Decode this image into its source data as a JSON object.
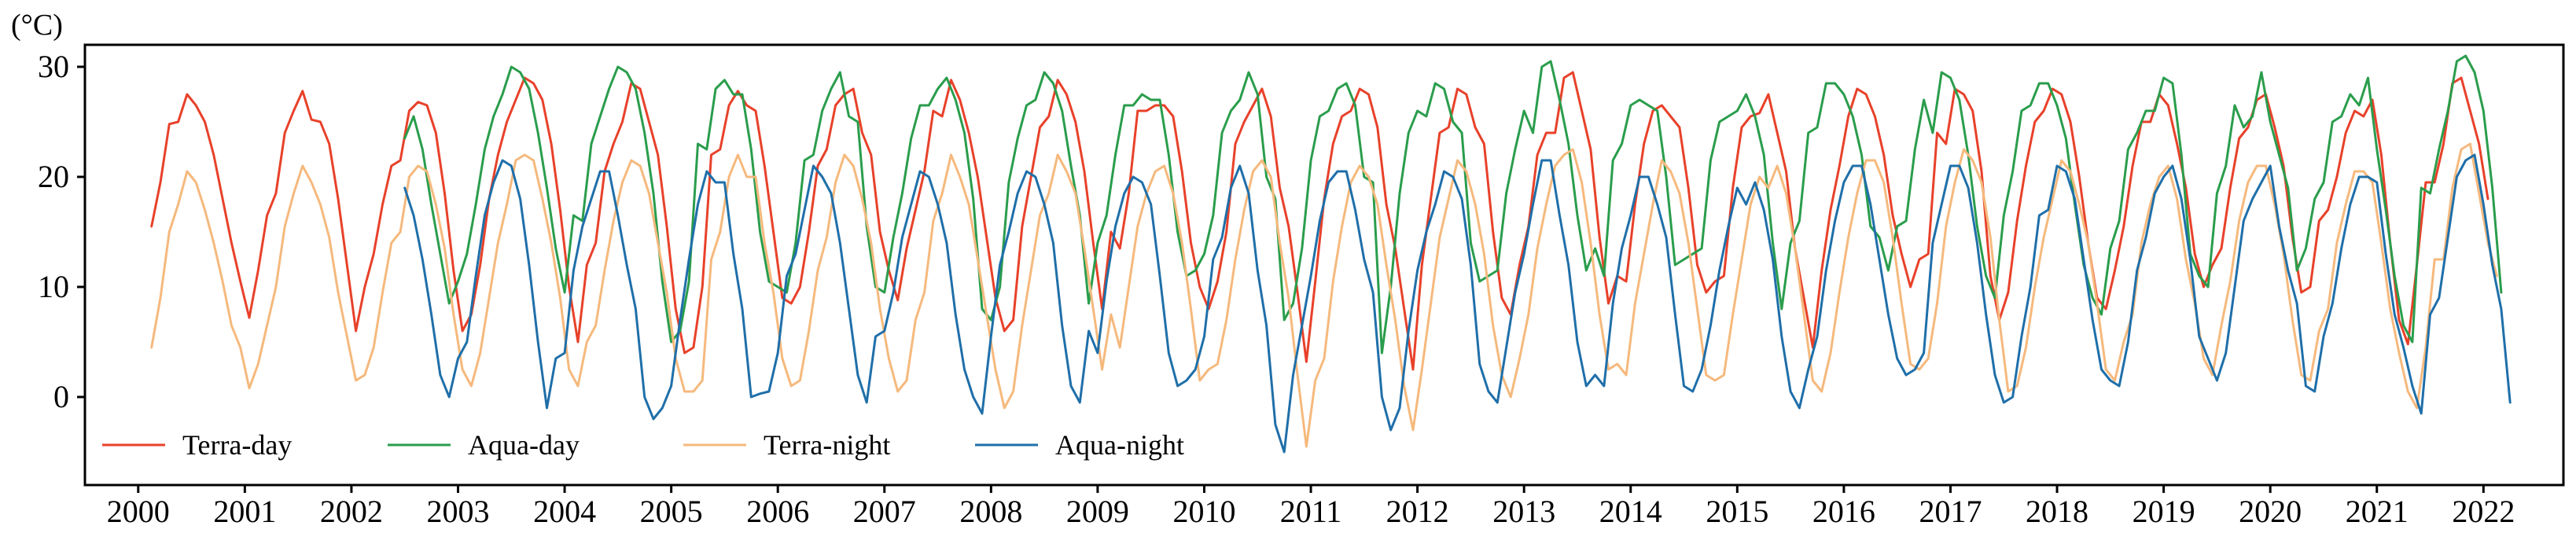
{
  "chart_data": {
    "type": "line",
    "title": "",
    "unit_label": "(°C)",
    "xlabel": "",
    "ylabel": "(°C)",
    "xlim": [
      1999.5,
      2022.75
    ],
    "ylim": [
      -8,
      32
    ],
    "yticks": [
      0,
      10,
      20,
      30
    ],
    "xticks": [
      "2000",
      "2001",
      "2002",
      "2003",
      "2004",
      "2005",
      "2006",
      "2007",
      "2008",
      "2009",
      "2010",
      "2011",
      "2012",
      "2013",
      "2014",
      "2015",
      "2016",
      "2017",
      "2018",
      "2019",
      "2020",
      "2021",
      "2022"
    ],
    "legend_position": "bottom-left",
    "series": [
      {
        "name": "Terra-day",
        "color": "#e8412a",
        "start": 2000.125,
        "values": [
          15.5,
          19.5,
          24.8,
          25.0,
          27.5,
          26.5,
          25.0,
          22.0,
          18.0,
          14.0,
          10.5,
          7.2,
          11.5,
          16.5,
          18.5,
          24.0,
          26.0,
          27.8,
          25.2,
          25.0,
          23.0,
          18.0,
          12.0,
          6.0,
          10.0,
          13.0,
          17.5,
          21.0,
          21.5,
          26.0,
          26.8,
          26.5,
          24.0,
          18.5,
          11.5,
          6.0,
          7.5,
          12.0,
          18.0,
          22.0,
          25.0,
          27.0,
          29.0,
          28.5,
          27.0,
          23.0,
          17.0,
          10.0,
          5.0,
          12.0,
          14.0,
          20.5,
          23.0,
          25.0,
          28.5,
          28.0,
          25.0,
          22.0,
          15.5,
          8.0,
          4.0,
          4.5,
          10.0,
          22.0,
          22.5,
          26.5,
          27.8,
          26.5,
          26.0,
          21.0,
          15.0,
          9.0,
          8.5,
          10.0,
          15.0,
          21.0,
          22.5,
          26.5,
          27.5,
          28.0,
          24.0,
          22.0,
          15.0,
          11.5,
          8.8,
          13.5,
          17.0,
          20.5,
          26.0,
          25.5,
          28.8,
          27.0,
          24.0,
          20.0,
          14.5,
          9.0,
          6.0,
          7.0,
          15.5,
          20.0,
          24.5,
          25.5,
          28.8,
          27.5,
          25.0,
          20.5,
          14.0,
          8.0,
          15.0,
          13.5,
          18.5,
          26.0,
          26.0,
          26.5,
          26.5,
          25.5,
          20.5,
          14.0,
          10.0,
          8.0,
          10.5,
          15.0,
          23.0,
          25.0,
          26.5,
          28.0,
          25.5,
          19.0,
          15.5,
          9.5,
          3.2,
          10.5,
          18.0,
          23.0,
          25.5,
          26.0,
          28.0,
          27.5,
          24.5,
          17.5,
          13.5,
          8.0,
          2.5,
          12.0,
          18.0,
          24.0,
          24.5,
          28.0,
          27.5,
          24.5,
          23.0,
          15.0,
          9.0,
          7.5,
          12.0,
          15.5,
          22.0,
          24.0,
          24.0,
          29.0,
          29.5,
          26.0,
          22.5,
          14.5,
          8.5,
          11.0,
          10.5,
          17.5,
          23.0,
          26.0,
          26.5,
          25.5,
          24.5,
          19.0,
          12.0,
          9.5,
          10.5,
          11.0,
          19.0,
          24.5,
          25.5,
          25.8,
          27.5,
          24.0,
          20.5,
          13.5,
          9.0,
          4.5,
          11.5,
          17.0,
          21.0,
          25.5,
          28.0,
          27.5,
          25.5,
          22.0,
          16.5,
          13.0,
          10.0,
          12.5,
          13.0,
          24.0,
          23.0,
          28.0,
          27.5,
          26.0,
          20.5,
          11.0,
          7.0,
          9.5,
          16.0,
          21.0,
          25.0,
          26.0,
          28.0,
          27.5,
          25.0,
          20.0,
          14.0,
          9.0,
          8.0,
          11.5,
          15.5,
          21.0,
          25.0,
          25.0,
          27.5,
          26.5,
          23.0,
          19.0,
          13.0,
          10.0,
          12.0,
          13.5,
          19.0,
          23.5,
          24.5,
          27.0,
          27.5,
          24.5,
          21.0,
          14.5,
          9.5,
          10.0,
          16.0,
          17.0,
          20.0,
          24.0,
          26.0,
          25.5,
          27.0,
          22.0,
          14.0,
          7.0,
          4.8,
          12.0,
          19.5,
          19.5,
          23.0,
          28.5,
          29.0,
          26.0,
          23.0,
          18.0
        ]
      },
      {
        "name": "Aqua-day",
        "color": "#2a9d4c",
        "start": 2002.5,
        "values": [
          23.5,
          25.5,
          22.5,
          17.5,
          13.0,
          8.5,
          10.5,
          13.0,
          17.5,
          22.5,
          25.5,
          27.5,
          30.0,
          29.5,
          28.0,
          24.0,
          19.0,
          13.5,
          9.5,
          16.5,
          16.0,
          23.0,
          25.5,
          28.0,
          30.0,
          29.5,
          28.0,
          24.0,
          18.5,
          10.5,
          5.0,
          6.0,
          10.5,
          23.0,
          22.5,
          28.0,
          28.8,
          27.5,
          27.5,
          22.5,
          15.0,
          10.5,
          10.0,
          9.5,
          14.0,
          21.5,
          22.0,
          26.0,
          28.0,
          29.5,
          25.5,
          25.0,
          15.5,
          10.0,
          9.5,
          14.5,
          18.5,
          23.5,
          26.5,
          26.5,
          28.0,
          29.0,
          27.0,
          24.0,
          18.0,
          8.0,
          7.0,
          10.0,
          19.5,
          23.5,
          26.5,
          27.0,
          29.5,
          28.5,
          26.0,
          21.0,
          16.5,
          8.5,
          14.0,
          16.5,
          22.0,
          26.5,
          26.5,
          27.5,
          27.0,
          27.0,
          22.0,
          15.0,
          11.0,
          11.5,
          13.0,
          16.5,
          24.0,
          26.0,
          27.0,
          29.5,
          27.5,
          20.0,
          18.0,
          7.0,
          8.5,
          13.5,
          21.5,
          25.5,
          26.0,
          28.0,
          28.5,
          26.5,
          20.0,
          19.5,
          4.0,
          10.0,
          18.5,
          24.0,
          26.0,
          25.5,
          28.5,
          28.0,
          25.0,
          24.0,
          14.0,
          10.5,
          11.0,
          11.5,
          18.5,
          22.5,
          26.0,
          24.0,
          30.0,
          30.5,
          27.0,
          23.0,
          16.5,
          11.5,
          13.5,
          11.0,
          21.5,
          23.0,
          26.5,
          27.0,
          26.5,
          26.0,
          20.0,
          12.0,
          12.5,
          13.0,
          13.5,
          21.5,
          25.0,
          25.5,
          26.0,
          27.5,
          25.5,
          22.0,
          14.0,
          8.0,
          14.0,
          16.0,
          24.0,
          24.5,
          28.5,
          28.5,
          27.5,
          25.5,
          22.0,
          15.5,
          14.5,
          11.5,
          15.5,
          16.0,
          22.5,
          27.0,
          24.0,
          29.5,
          29.0,
          27.0,
          22.0,
          15.5,
          11.0,
          9.0,
          16.5,
          20.5,
          26.0,
          26.5,
          28.5,
          28.5,
          26.5,
          23.5,
          17.5,
          12.0,
          9.0,
          7.5,
          13.5,
          16.0,
          22.5,
          24.0,
          26.0,
          26.0,
          29.0,
          28.5,
          22.0,
          13.0,
          11.0,
          10.0,
          18.5,
          21.0,
          26.5,
          24.5,
          25.5,
          29.5,
          25.0,
          22.0,
          19.0,
          11.5,
          13.5,
          18.0,
          19.5,
          25.0,
          25.5,
          27.5,
          26.5,
          29.0,
          22.5,
          17.0,
          11.0,
          6.5,
          5.0,
          19.0,
          18.5,
          22.5,
          26.0,
          30.5,
          31.0,
          29.5,
          26.0,
          19.0,
          9.5
        ]
      },
      {
        "name": "Terra-night",
        "color": "#f5b97d",
        "start": 2000.125,
        "values": [
          4.5,
          9.0,
          15.0,
          17.5,
          20.5,
          19.5,
          17.0,
          14.0,
          10.5,
          6.5,
          4.5,
          0.8,
          3.0,
          6.5,
          10.0,
          15.5,
          18.5,
          21.0,
          19.5,
          17.5,
          14.5,
          9.5,
          5.5,
          1.5,
          2.0,
          4.5,
          9.5,
          14.0,
          15.0,
          20.0,
          21.0,
          20.5,
          17.5,
          13.5,
          7.5,
          2.5,
          1.0,
          4.0,
          9.0,
          14.0,
          17.5,
          21.5,
          22.0,
          21.5,
          18.0,
          14.0,
          9.0,
          2.5,
          1.0,
          5.0,
          6.5,
          11.5,
          16.0,
          19.5,
          21.5,
          21.0,
          18.5,
          14.0,
          9.5,
          3.5,
          0.5,
          0.5,
          1.5,
          12.5,
          15.0,
          20.0,
          22.0,
          20.0,
          20.0,
          14.0,
          9.5,
          3.5,
          1.0,
          1.5,
          6.0,
          11.5,
          14.5,
          19.5,
          22.0,
          21.0,
          18.0,
          14.0,
          8.0,
          3.5,
          0.5,
          1.5,
          7.0,
          9.5,
          16.0,
          18.5,
          22.0,
          20.0,
          17.5,
          12.5,
          7.5,
          2.5,
          -1.0,
          0.5,
          6.5,
          11.5,
          16.5,
          18.5,
          22.0,
          20.5,
          18.5,
          13.5,
          8.0,
          2.5,
          7.5,
          4.5,
          10.0,
          15.5,
          18.5,
          20.5,
          21.0,
          18.5,
          14.0,
          8.0,
          1.5,
          2.5,
          3.0,
          7.0,
          12.5,
          17.0,
          20.5,
          21.5,
          20.0,
          14.0,
          9.0,
          2.0,
          -4.5,
          1.5,
          3.5,
          10.5,
          15.5,
          19.5,
          21.0,
          20.0,
          17.5,
          12.0,
          7.0,
          1.0,
          -3.0,
          2.5,
          8.5,
          14.5,
          18.0,
          21.5,
          20.5,
          17.5,
          13.0,
          6.5,
          2.0,
          0.0,
          3.5,
          7.5,
          13.5,
          17.5,
          21.0,
          22.0,
          22.5,
          19.5,
          14.0,
          7.5,
          2.5,
          3.0,
          2.0,
          8.5,
          13.0,
          17.5,
          21.5,
          20.5,
          18.5,
          14.0,
          8.0,
          2.0,
          1.5,
          2.0,
          7.5,
          12.5,
          17.5,
          20.0,
          19.0,
          21.0,
          18.5,
          13.5,
          7.5,
          1.5,
          0.5,
          4.0,
          9.5,
          14.5,
          18.5,
          21.5,
          21.5,
          19.5,
          14.5,
          8.5,
          3.0,
          2.5,
          3.5,
          8.5,
          15.5,
          19.5,
          22.5,
          21.5,
          19.5,
          14.5,
          7.0,
          0.5,
          1.0,
          4.5,
          10.0,
          14.5,
          18.0,
          21.5,
          20.5,
          17.5,
          14.0,
          8.5,
          2.5,
          1.5,
          5.0,
          7.5,
          14.0,
          17.5,
          20.0,
          21.0,
          18.0,
          12.5,
          8.5,
          3.5,
          2.0,
          6.5,
          10.5,
          16.0,
          19.5,
          21.0,
          21.0,
          17.5,
          13.0,
          7.0,
          2.0,
          1.5,
          6.0,
          8.0,
          14.0,
          17.5,
          20.5,
          20.5,
          19.5,
          14.0,
          8.0,
          4.0,
          0.5,
          -1.0,
          4.5,
          12.5,
          12.5,
          19.0,
          22.5,
          23.0,
          18.5,
          14.0,
          11.0
        ]
      },
      {
        "name": "Aqua-night",
        "color": "#1f6fa9",
        "start": 2002.5,
        "values": [
          19.0,
          16.5,
          12.5,
          7.5,
          2.0,
          0.0,
          3.5,
          5.0,
          11.0,
          16.5,
          19.5,
          21.5,
          21.0,
          18.0,
          12.0,
          5.0,
          -1.0,
          3.5,
          4.0,
          11.5,
          15.5,
          18.0,
          20.5,
          20.5,
          16.5,
          12.0,
          8.0,
          0.0,
          -2.0,
          -1.0,
          1.0,
          7.0,
          12.5,
          17.5,
          20.5,
          19.5,
          19.5,
          13.0,
          8.0,
          0.0,
          0.3,
          0.5,
          4.0,
          11.0,
          13.0,
          17.0,
          21.0,
          20.0,
          18.5,
          14.0,
          8.0,
          2.0,
          -0.5,
          5.5,
          6.0,
          9.5,
          14.5,
          17.5,
          20.5,
          20.0,
          17.5,
          14.0,
          7.5,
          2.5,
          0.0,
          -1.5,
          5.5,
          12.0,
          15.0,
          18.5,
          20.5,
          20.0,
          17.5,
          14.0,
          6.5,
          1.0,
          -0.5,
          6.0,
          4.0,
          10.5,
          15.5,
          18.5,
          20.0,
          19.5,
          17.5,
          11.0,
          4.0,
          1.0,
          1.5,
          2.5,
          5.5,
          12.5,
          14.5,
          19.0,
          21.0,
          18.5,
          11.5,
          6.5,
          -2.5,
          -5.0,
          2.0,
          6.5,
          11.0,
          16.0,
          19.5,
          20.5,
          20.5,
          17.0,
          12.5,
          9.5,
          0.0,
          -3.0,
          -1.0,
          6.0,
          11.5,
          15.0,
          17.5,
          20.5,
          20.0,
          18.0,
          12.0,
          3.0,
          0.5,
          -0.5,
          4.5,
          9.5,
          13.0,
          17.5,
          21.5,
          21.5,
          16.5,
          12.0,
          5.0,
          1.0,
          2.0,
          1.0,
          8.5,
          13.5,
          16.5,
          20.0,
          20.0,
          17.5,
          14.5,
          7.5,
          1.0,
          0.5,
          2.5,
          6.5,
          11.5,
          15.5,
          19.0,
          17.5,
          19.5,
          17.0,
          12.5,
          5.5,
          0.5,
          -1.0,
          2.5,
          5.5,
          11.5,
          16.0,
          19.5,
          21.0,
          21.0,
          17.5,
          12.5,
          7.5,
          3.5,
          2.0,
          2.5,
          4.0,
          14.0,
          17.5,
          21.0,
          21.0,
          19.0,
          14.0,
          7.5,
          2.0,
          -0.5,
          0.0,
          5.5,
          10.0,
          16.5,
          17.0,
          21.0,
          20.5,
          18.0,
          12.5,
          7.0,
          2.5,
          1.5,
          1.0,
          5.0,
          11.5,
          14.5,
          18.5,
          20.0,
          21.0,
          18.0,
          12.5,
          5.5,
          3.5,
          1.5,
          4.0,
          10.0,
          16.0,
          18.0,
          19.5,
          21.0,
          15.5,
          11.5,
          8.5,
          1.0,
          0.5,
          5.5,
          8.5,
          13.5,
          17.5,
          20.0,
          20.0,
          19.5,
          13.0,
          7.5,
          4.5,
          1.0,
          -1.5,
          7.5,
          9.0,
          14.5,
          20.0,
          21.5,
          22.0,
          17.5,
          12.0,
          8.0,
          -0.5
        ]
      }
    ]
  }
}
